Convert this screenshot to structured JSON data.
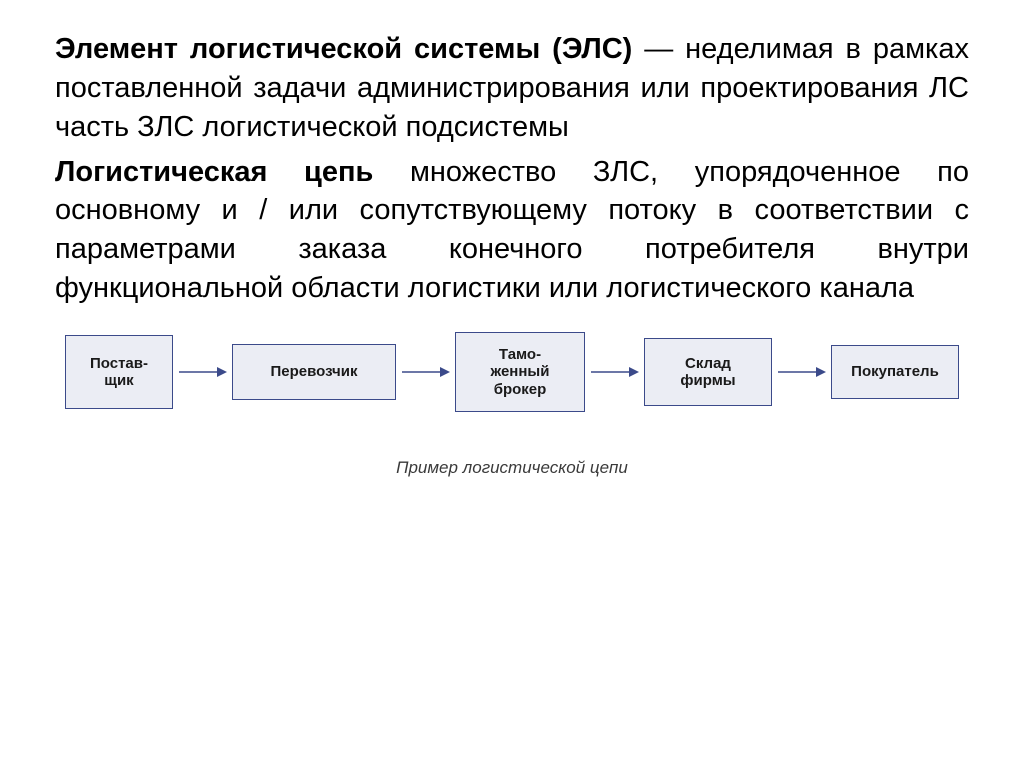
{
  "paragraphs": {
    "p1_bold": "Элемент логистической системы (ЭЛС)",
    "p1_rest": " — неделимая в рамках поставленной задачи администрирования или проектирования ЛС часть ЗЛС логистической подсистемы",
    "p2_bold": "Логистическая цепь",
    "p2_rest": " множество ЗЛС, упорядоченное по основному и / или сопутствующему потоку в соответствии с параметрами заказа конечного потребителя внутри функциональной области логистики или логистического канала"
  },
  "diagram": {
    "type": "flowchart",
    "caption": "Пример логистической цепи",
    "caption_fontsize": 17,
    "caption_color": "#3a3a3a",
    "node_font_size": 15,
    "node_font_weight": "bold",
    "node_bg": "#ebedf4",
    "node_border_color": "#3b4a8a",
    "node_border_width": 1,
    "node_text_color": "#1a1a1a",
    "arrow_color": "#3b4a8a",
    "arrow_width": 1.5,
    "arrow_gap_width": 52,
    "arrow_svg_height": 20,
    "nodes": [
      {
        "id": "supplier",
        "label": "Постав-\nщик",
        "w": 108,
        "h": 74
      },
      {
        "id": "carrier",
        "label": "Перевозчик",
        "w": 164,
        "h": 56
      },
      {
        "id": "broker",
        "label": "Тамо-\nженный\nброкер",
        "w": 130,
        "h": 80
      },
      {
        "id": "warehouse",
        "label": "Склад\nфирмы",
        "w": 128,
        "h": 68
      },
      {
        "id": "buyer",
        "label": "Покупатель",
        "w": 128,
        "h": 54
      }
    ]
  },
  "colors": {
    "page_bg": "#ffffff",
    "text": "#000000"
  }
}
